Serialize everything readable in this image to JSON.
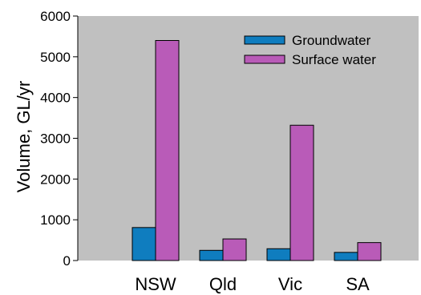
{
  "chart_data": {
    "type": "bar",
    "title": "",
    "xlabel": "",
    "ylabel": "Volume, GL/yr",
    "categories": [
      "NSW",
      "Qld",
      "Vic",
      "SA"
    ],
    "series": [
      {
        "name": "Groundwater",
        "values": [
          810,
          250,
          290,
          200
        ],
        "color": "#0f7dbf"
      },
      {
        "name": "Surface water",
        "values": [
          5400,
          530,
          3320,
          440
        ],
        "color": "#b95bb8"
      }
    ],
    "ylim": [
      0,
      6000
    ],
    "yticks": [
      "0",
      "1000",
      "2000",
      "3000",
      "4000",
      "5000",
      "6000"
    ],
    "grid": false,
    "legend_position": "top-right",
    "plot_background": "#c0c0c0"
  }
}
